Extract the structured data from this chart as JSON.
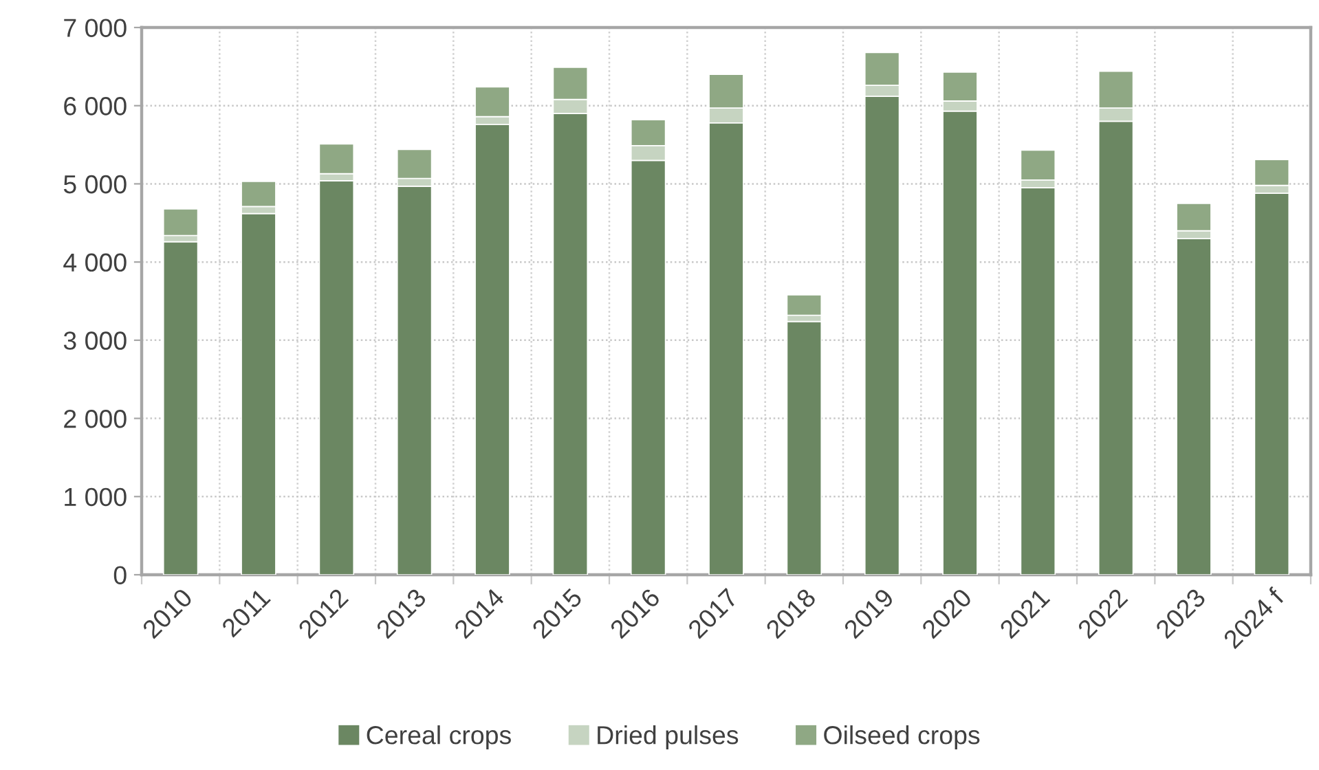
{
  "chart_data": {
    "type": "bar",
    "stacked": true,
    "categories": [
      "2010",
      "2011",
      "2012",
      "2013",
      "2014",
      "2015",
      "2016",
      "2017",
      "2018",
      "2019",
      "2020",
      "2021",
      "2022",
      "2023",
      "2024 f"
    ],
    "series": [
      {
        "name": "Cereal crops",
        "color": "#6b8762",
        "values": [
          4260,
          4620,
          5040,
          4970,
          5760,
          5900,
          5300,
          5780,
          3240,
          6120,
          5930,
          4950,
          5800,
          4300,
          4880
        ]
      },
      {
        "name": "Dried pulses",
        "color": "#c6d4c1",
        "values": [
          80,
          90,
          90,
          100,
          100,
          180,
          190,
          190,
          80,
          140,
          130,
          100,
          170,
          100,
          100
        ]
      },
      {
        "name": "Oilseed crops",
        "color": "#8fa884",
        "values": [
          340,
          320,
          380,
          370,
          380,
          410,
          330,
          430,
          260,
          420,
          370,
          380,
          470,
          350,
          330
        ]
      }
    ],
    "ylim": [
      0,
      7000
    ],
    "yticks": [
      0,
      {
        "value": 1000,
        "label": "1 000"
      },
      {
        "value": 2000,
        "label": "2 000"
      },
      {
        "value": 3000,
        "label": "3 000"
      },
      {
        "value": 4000,
        "label": "4 000"
      },
      {
        "value": 5000,
        "label": "5 000"
      },
      {
        "value": 6000,
        "label": "6 000"
      },
      {
        "value": 7000,
        "label": "7 000"
      }
    ],
    "grid": true,
    "legend": "bottom"
  }
}
